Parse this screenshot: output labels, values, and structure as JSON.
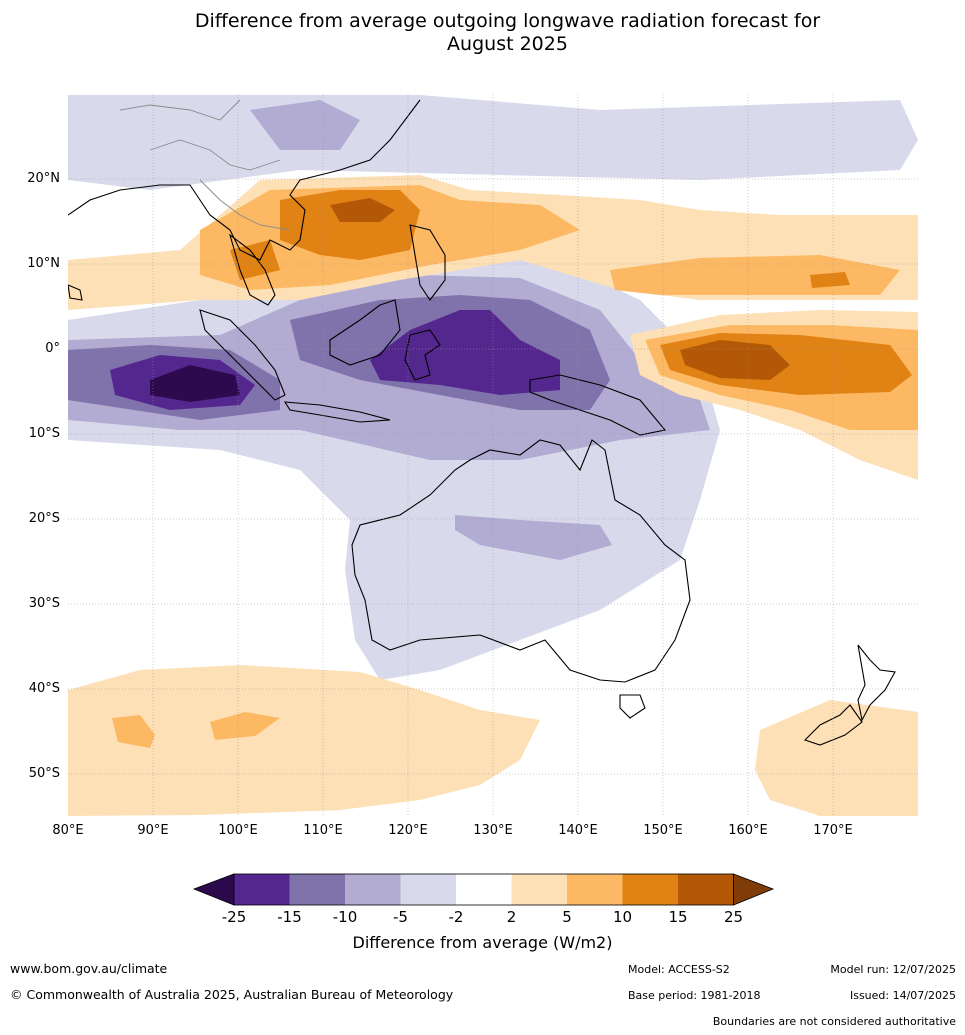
{
  "title_line1": "Difference from average outgoing longwave radiation forecast for",
  "title_line2": "August 2025",
  "latitude_labels": [
    "20°N",
    "10°N",
    "0°",
    "10°S",
    "20°S",
    "30°S",
    "40°S",
    "50°S"
  ],
  "longitude_labels": [
    "80°E",
    "90°E",
    "100°E",
    "110°E",
    "120°E",
    "130°E",
    "140°E",
    "150°E",
    "160°E",
    "170°E"
  ],
  "colorbar": {
    "title": "Difference from average (W/m2)",
    "tick_labels": [
      "-25",
      "-15",
      "-10",
      "-5",
      "-2",
      "2",
      "5",
      "10",
      "15",
      "25"
    ],
    "colors": [
      "#2d0a4e",
      "#54278f",
      "#8073ac",
      "#b2abd2",
      "#d8daeb",
      "#ffffff",
      "#fee0b6",
      "#fdb863",
      "#e08214",
      "#b35806",
      "#7f3b08"
    ]
  },
  "footer": {
    "website": "www.bom.gov.au/climate",
    "copyright": "© Commonwealth of Australia 2025, Australian Bureau of Meteorology",
    "model": "Model: ACCESS-S2",
    "base_period": "Base period: 1981-2018",
    "model_run": "Model run: 12/07/2025",
    "issued": "Issued: 14/07/2025",
    "boundaries_note": "Boundaries are not considered authoritative"
  }
}
